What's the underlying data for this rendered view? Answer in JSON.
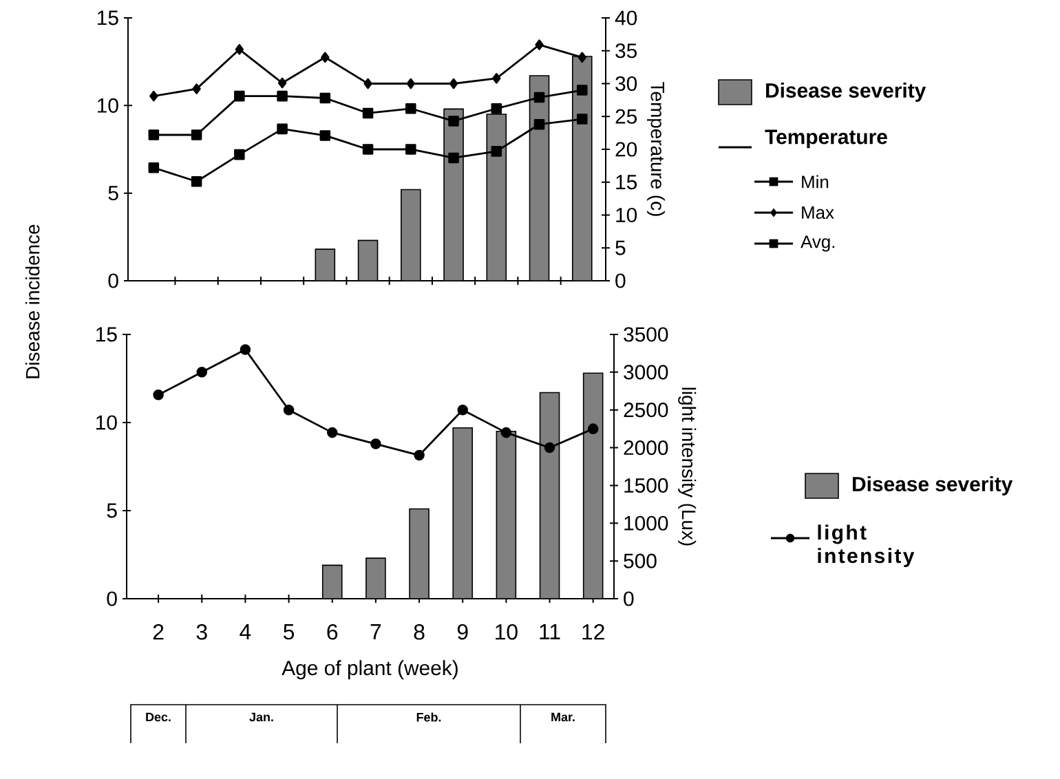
{
  "chart_data": [
    {
      "type": "bar",
      "categories": [
        "2",
        "3",
        "4",
        "5",
        "6",
        "7",
        "8",
        "9",
        "10",
        "11",
        "12"
      ],
      "ylabel": "Disease incidence",
      "y2label": "Temperature (c)",
      "legend": "right",
      "legend_title": "Temperature",
      "tick_labels": "y",
      "series": [
        {
          "name": "Disease severity",
          "color": "#808080",
          "values": [
            null,
            null,
            null,
            null,
            1.8,
            2.3,
            5.2,
            9.8,
            9.5,
            11.7,
            12.8
          ]
        },
        {
          "name": "Min",
          "type": "line",
          "axis": "y2",
          "marker": "square",
          "color": "#000000",
          "values": [
            17.2,
            15.1,
            19.2,
            23.1,
            22.1,
            20.0,
            20.0,
            18.7,
            19.7,
            23.8,
            24.6
          ]
        },
        {
          "name": "Max",
          "type": "line",
          "axis": "y2",
          "marker": "diamond",
          "color": "#000000",
          "values": [
            28.1,
            29.2,
            35.2,
            30.1,
            34.0,
            30.0,
            30.0,
            30.0,
            30.8,
            35.9,
            34.0
          ]
        },
        {
          "name": "Avg.",
          "type": "line",
          "axis": "y2",
          "marker": "square",
          "color": "#000000",
          "values": [
            22.2,
            22.2,
            28.1,
            28.1,
            27.8,
            25.5,
            26.2,
            24.3,
            26.2,
            27.9,
            29.0
          ]
        }
      ],
      "ylim": [
        0,
        15
      ],
      "yticks": [
        0,
        5,
        10,
        15
      ],
      "y2lim": [
        0,
        40
      ],
      "y2ticks": [
        0,
        5,
        10,
        15,
        20,
        25,
        30,
        35,
        40
      ]
    },
    {
      "type": "bar",
      "categories": [
        "2",
        "3",
        "4",
        "5",
        "6",
        "7",
        "8",
        "9",
        "10",
        "11",
        "12"
      ],
      "xlabel": "Age of plant (week)",
      "y2label": "light intensity (Lux)",
      "legend": "right",
      "series": [
        {
          "name": "Disease severity",
          "color": "#808080",
          "values": [
            null,
            null,
            null,
            null,
            1.9,
            2.3,
            5.1,
            9.7,
            9.5,
            11.7,
            12.8
          ]
        },
        {
          "name": "light intensity",
          "type": "line",
          "axis": "y2",
          "marker": "circle",
          "color": "#000000",
          "values": [
            2700,
            3000,
            3300,
            2500,
            2200,
            2050,
            1900,
            2500,
            2200,
            2000,
            2250
          ]
        }
      ],
      "ylim": [
        0,
        15
      ],
      "yticks": [
        0,
        5,
        10,
        15
      ],
      "y2lim": [
        0,
        3500
      ],
      "y2ticks": [
        0,
        500,
        1000,
        1500,
        2000,
        2500,
        3000,
        3500
      ],
      "annotations": [
        "Dec.",
        "Jan.",
        "Feb.",
        "Mar."
      ]
    }
  ]
}
